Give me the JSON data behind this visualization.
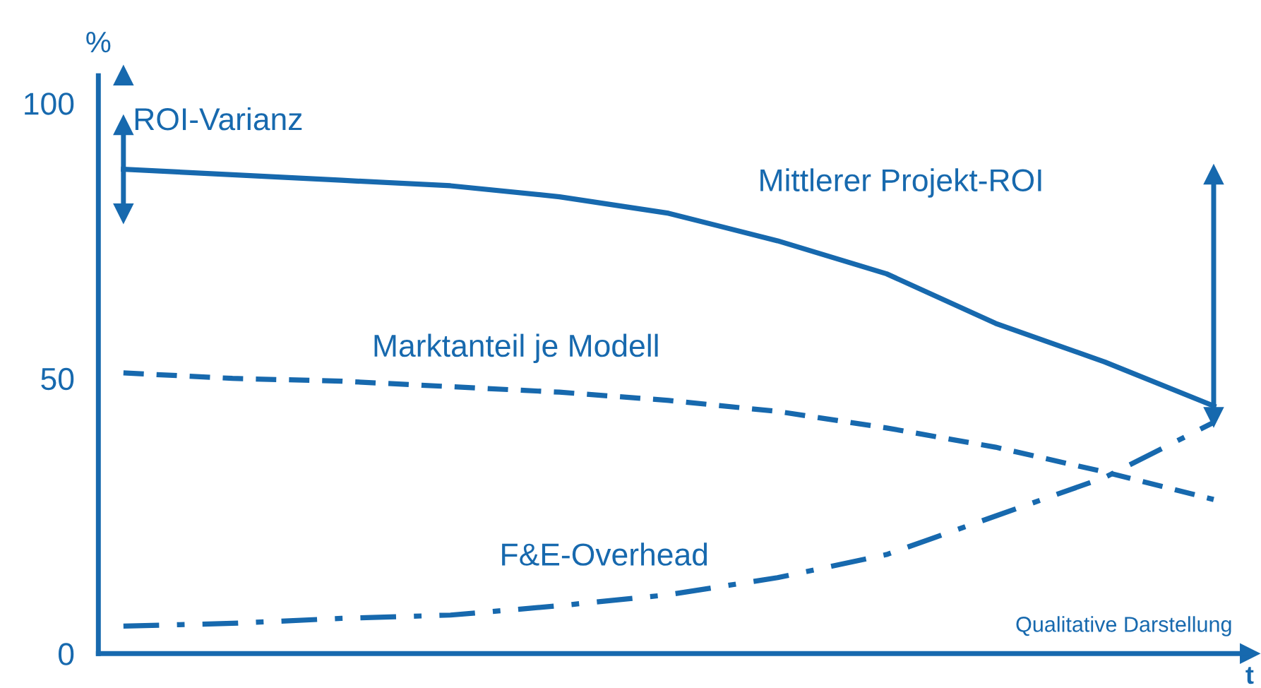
{
  "chart_data": {
    "type": "line",
    "ylabel": "%",
    "xlabel": "t",
    "categories": [
      null,
      null,
      null,
      null,
      null,
      null,
      null,
      null,
      null,
      null,
      null
    ],
    "ylim": [
      0,
      105
    ],
    "yticks": [
      0,
      50,
      100
    ],
    "grid": false,
    "legend": false,
    "marker": "none",
    "annotations": [
      "ROI-Varianz",
      "Qualitative Darstellung"
    ],
    "series": [
      {
        "name": "Mittlerer Projekt-ROI",
        "color": "#1769ae",
        "line_style": "solid",
        "values": [
          88,
          87,
          86,
          85,
          83,
          80,
          75,
          69,
          60,
          53,
          45
        ],
        "errors": [
          [
            80,
            96
          ],
          null,
          null,
          null,
          null,
          null,
          null,
          null,
          null,
          null,
          [
            43,
            87
          ]
        ]
      },
      {
        "name": "Marktanteil je Modell",
        "color": "#1769ae",
        "line_style": "dashed",
        "values": [
          51,
          50,
          49.5,
          48.5,
          47.5,
          46,
          44,
          41,
          37.5,
          33,
          28
        ]
      },
      {
        "name": "F&E-Overhead",
        "color": "#1769ae",
        "line_style": "dashdot",
        "values": [
          5,
          5.5,
          6.4,
          7,
          8.7,
          10.7,
          13.8,
          18,
          25,
          32,
          42
        ]
      }
    ]
  }
}
